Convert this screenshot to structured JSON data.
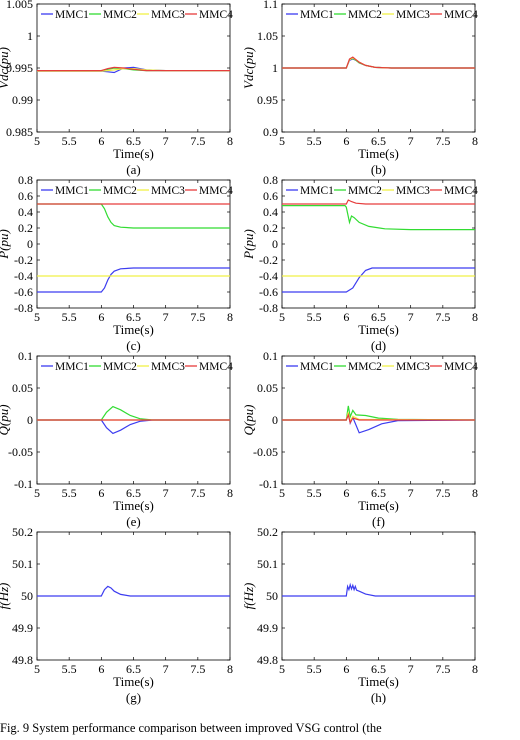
{
  "figure": {
    "caption": "Fig. 9   System performance comparison between improved VSG control (the"
  },
  "colors": {
    "MMC1": "#3c3cf0",
    "MMC2": "#32dc32",
    "MMC3": "#f0f046",
    "MMC4": "#e63c3c"
  },
  "chart_data": [
    {
      "id": "a",
      "type": "line",
      "panel_label": "(a)",
      "xlabel": "Time(s)",
      "ylabel": "Vdc(pu)",
      "xlim": [
        5,
        8
      ],
      "ylim": [
        0.985,
        1.005
      ],
      "xticks": [
        "5",
        "5.5",
        "6",
        "6.5",
        "7",
        "7.5",
        "8"
      ],
      "yticks": [
        "0.985",
        "0.99",
        "0.995",
        "1",
        "1.005"
      ],
      "legend": [
        "MMC1",
        "MMC2",
        "MMC3",
        "MMC4"
      ],
      "legend_position": "top",
      "series": [
        {
          "name": "MMC1",
          "x": [
            5,
            6.0,
            6.1,
            6.2,
            6.35,
            6.5,
            6.7,
            7,
            8
          ],
          "y": [
            0.9945,
            0.9945,
            0.9944,
            0.9943,
            0.995,
            0.9951,
            0.9947,
            0.9946,
            0.9946
          ]
        },
        {
          "name": "MMC2",
          "x": [
            5,
            6.0,
            6.1,
            6.2,
            6.35,
            6.5,
            6.7,
            7,
            8
          ],
          "y": [
            0.9946,
            0.9946,
            0.9948,
            0.995,
            0.9949,
            0.9947,
            0.9946,
            0.9946,
            0.9946
          ]
        },
        {
          "name": "MMC3",
          "x": [
            5,
            6.0,
            6.1,
            6.2,
            6.35,
            6.5,
            6.7,
            7,
            8
          ],
          "y": [
            0.9945,
            0.9945,
            0.9946,
            0.9947,
            0.9949,
            0.9949,
            0.9947,
            0.9946,
            0.9946
          ]
        },
        {
          "name": "MMC4",
          "x": [
            5,
            6.0,
            6.1,
            6.2,
            6.35,
            6.5,
            6.7,
            7,
            8
          ],
          "y": [
            0.9946,
            0.9946,
            0.9949,
            0.9951,
            0.995,
            0.9948,
            0.9946,
            0.9946,
            0.9946
          ]
        }
      ]
    },
    {
      "id": "b",
      "type": "line",
      "panel_label": "(b)",
      "xlabel": "Time(s)",
      "ylabel": "Vdc(pu)",
      "xlim": [
        5,
        8
      ],
      "ylim": [
        0.9,
        1.1
      ],
      "xticks": [
        "5",
        "5.5",
        "6",
        "6.5",
        "7",
        "7.5",
        "8"
      ],
      "yticks": [
        "0.9",
        "0.95",
        "1",
        "1.05",
        "1.1"
      ],
      "legend": [
        "MMC1",
        "MMC2",
        "MMC3",
        "MMC4"
      ],
      "legend_position": "top",
      "series": [
        {
          "name": "MMC1",
          "x": [
            5,
            6.0,
            6.05,
            6.1,
            6.15,
            6.2,
            6.3,
            6.45,
            6.7,
            8
          ],
          "y": [
            1.0,
            1.0,
            1.012,
            1.014,
            1.012,
            1.008,
            1.004,
            1.001,
            1.0,
            1.0
          ]
        },
        {
          "name": "MMC2",
          "x": [
            5,
            6.0,
            6.05,
            6.1,
            6.15,
            6.2,
            6.3,
            6.45,
            6.7,
            8
          ],
          "y": [
            1.0,
            1.0,
            1.013,
            1.015,
            1.012,
            1.008,
            1.004,
            1.001,
            1.0,
            1.0
          ]
        },
        {
          "name": "MMC3",
          "x": [
            5,
            6.0,
            6.05,
            6.1,
            6.15,
            6.2,
            6.3,
            6.45,
            6.7,
            8
          ],
          "y": [
            1.0,
            1.0,
            1.013,
            1.016,
            1.013,
            1.009,
            1.004,
            1.001,
            1.0,
            1.0
          ]
        },
        {
          "name": "MMC4",
          "x": [
            5,
            6.0,
            6.05,
            6.1,
            6.15,
            6.2,
            6.3,
            6.45,
            6.7,
            8
          ],
          "y": [
            1.0,
            1.0,
            1.014,
            1.017,
            1.013,
            1.009,
            1.004,
            1.001,
            1.0,
            1.0
          ]
        }
      ]
    },
    {
      "id": "c",
      "type": "line",
      "panel_label": "(c)",
      "xlabel": "Time(s)",
      "ylabel": "P(pu)",
      "xlim": [
        5,
        8
      ],
      "ylim": [
        -0.8,
        0.8
      ],
      "xticks": [
        "5",
        "5.5",
        "6",
        "6.5",
        "7",
        "7.5",
        "8"
      ],
      "yticks": [
        "-0.8",
        "-0.6",
        "-0.4",
        "-0.2",
        "0",
        "0.2",
        "0.4",
        "0.6",
        "0.8"
      ],
      "legend": [
        "MMC1",
        "MMC2",
        "MMC3",
        "MMC4"
      ],
      "legend_position": "top",
      "series": [
        {
          "name": "MMC1",
          "x": [
            5,
            6.0,
            6.05,
            6.1,
            6.15,
            6.2,
            6.3,
            6.5,
            8
          ],
          "y": [
            -0.6,
            -0.6,
            -0.55,
            -0.45,
            -0.38,
            -0.34,
            -0.31,
            -0.3,
            -0.3
          ]
        },
        {
          "name": "MMC2",
          "x": [
            5,
            6.0,
            6.05,
            6.1,
            6.15,
            6.2,
            6.3,
            6.5,
            8
          ],
          "y": [
            0.5,
            0.5,
            0.44,
            0.34,
            0.27,
            0.23,
            0.21,
            0.2,
            0.2
          ]
        },
        {
          "name": "MMC3",
          "x": [
            5,
            8
          ],
          "y": [
            -0.4,
            -0.4
          ]
        },
        {
          "name": "MMC4",
          "x": [
            5,
            8
          ],
          "y": [
            0.5,
            0.5
          ]
        }
      ]
    },
    {
      "id": "d",
      "type": "line",
      "panel_label": "(d)",
      "xlabel": "Time(s)",
      "ylabel": "P(pu)",
      "xlim": [
        5,
        8
      ],
      "ylim": [
        -0.8,
        0.8
      ],
      "xticks": [
        "5",
        "5.5",
        "6",
        "6.5",
        "7",
        "7.5",
        "8"
      ],
      "yticks": [
        "-0.8",
        "-0.6",
        "-0.4",
        "-0.2",
        "0",
        "0.2",
        "0.4",
        "0.6",
        "0.8"
      ],
      "legend": [
        "MMC1",
        "MMC2",
        "MMC3",
        "MMC4"
      ],
      "legend_position": "top",
      "series": [
        {
          "name": "MMC1",
          "x": [
            5,
            6.0,
            6.1,
            6.2,
            6.3,
            6.4,
            6.6,
            8
          ],
          "y": [
            -0.6,
            -0.6,
            -0.55,
            -0.42,
            -0.33,
            -0.3,
            -0.3,
            -0.3
          ]
        },
        {
          "name": "MMC2",
          "x": [
            5,
            5.98,
            6.0,
            6.05,
            6.08,
            6.12,
            6.2,
            6.35,
            6.6,
            7.0,
            8
          ],
          "y": [
            0.48,
            0.48,
            0.46,
            0.27,
            0.35,
            0.33,
            0.27,
            0.22,
            0.19,
            0.18,
            0.18
          ]
        },
        {
          "name": "MMC3",
          "x": [
            5,
            8
          ],
          "y": [
            -0.4,
            -0.4
          ]
        },
        {
          "name": "MMC4",
          "x": [
            5,
            6.0,
            6.03,
            6.08,
            6.15,
            6.3,
            8
          ],
          "y": [
            0.5,
            0.5,
            0.55,
            0.53,
            0.51,
            0.5,
            0.5
          ]
        }
      ]
    },
    {
      "id": "e",
      "type": "line",
      "panel_label": "(e)",
      "xlabel": "Time(s)",
      "ylabel": "Q(pu)",
      "xlim": [
        5,
        8
      ],
      "ylim": [
        -0.1,
        0.1
      ],
      "xticks": [
        "5",
        "5.5",
        "6",
        "6.5",
        "7",
        "7.5",
        "8"
      ],
      "yticks": [
        "-0.1",
        "-0.05",
        "0",
        "0.05",
        "0.1"
      ],
      "legend": [
        "MMC1",
        "MMC2",
        "MMC3",
        "MMC4"
      ],
      "legend_position": "top",
      "series": [
        {
          "name": "MMC1",
          "x": [
            5,
            6.0,
            6.08,
            6.18,
            6.3,
            6.45,
            6.6,
            6.8,
            8
          ],
          "y": [
            0,
            0,
            -0.012,
            -0.021,
            -0.016,
            -0.007,
            -0.002,
            0,
            0
          ]
        },
        {
          "name": "MMC2",
          "x": [
            5,
            6.0,
            6.08,
            6.18,
            6.3,
            6.45,
            6.6,
            6.8,
            8
          ],
          "y": [
            0,
            0,
            0.012,
            0.021,
            0.016,
            0.007,
            0.002,
            0,
            0
          ]
        },
        {
          "name": "MMC3",
          "x": [
            5,
            8
          ],
          "y": [
            0,
            0
          ]
        },
        {
          "name": "MMC4",
          "x": [
            5,
            8
          ],
          "y": [
            0,
            0
          ]
        }
      ]
    },
    {
      "id": "f",
      "type": "line",
      "panel_label": "(f)",
      "xlabel": "Time(s)",
      "ylabel": "Q(pu)",
      "xlim": [
        5,
        8
      ],
      "ylim": [
        -0.1,
        0.1
      ],
      "xticks": [
        "5",
        "5.5",
        "6",
        "6.5",
        "7",
        "7.5",
        "8"
      ],
      "yticks": [
        "-0.1",
        "-0.05",
        "0",
        "0.05",
        "0.1"
      ],
      "legend": [
        "MMC1",
        "MMC2",
        "MMC3",
        "MMC4"
      ],
      "legend_position": "top",
      "series": [
        {
          "name": "MMC1",
          "x": [
            5,
            6.0,
            6.03,
            6.06,
            6.1,
            6.2,
            6.35,
            6.55,
            6.8,
            8
          ],
          "y": [
            0,
            0,
            0.01,
            -0.005,
            0.004,
            -0.02,
            -0.015,
            -0.006,
            -0.001,
            0
          ]
        },
        {
          "name": "MMC2",
          "x": [
            5,
            6.0,
            6.03,
            6.06,
            6.1,
            6.15,
            6.3,
            6.5,
            6.8,
            8
          ],
          "y": [
            0,
            0,
            0.022,
            0.005,
            0.015,
            0.008,
            0.007,
            0.003,
            0.001,
            0
          ]
        },
        {
          "name": "MMC3",
          "x": [
            5,
            6.0,
            6.03,
            6.06,
            6.1,
            6.2,
            8
          ],
          "y": [
            0,
            0,
            0.012,
            -0.003,
            0.006,
            0.001,
            0
          ]
        },
        {
          "name": "MMC4",
          "x": [
            5,
            6.0,
            6.03,
            6.06,
            6.1,
            6.2,
            8
          ],
          "y": [
            0,
            0,
            0.008,
            -0.004,
            0.003,
            0,
            0
          ]
        }
      ]
    },
    {
      "id": "g",
      "type": "line",
      "panel_label": "(g)",
      "xlabel": "Time(s)",
      "ylabel": "f(Hz)",
      "xlim": [
        5,
        8
      ],
      "ylim": [
        49.8,
        50.2
      ],
      "xticks": [
        "5",
        "5.5",
        "6",
        "6.5",
        "7",
        "7.5",
        "8"
      ],
      "yticks": [
        "49.8",
        "49.9",
        "50",
        "50.1",
        "50.2"
      ],
      "series": [
        {
          "name": "",
          "color": "#3c3cf0",
          "x": [
            5,
            6.0,
            6.05,
            6.1,
            6.15,
            6.2,
            6.3,
            6.45,
            8
          ],
          "y": [
            50,
            50,
            50.02,
            50.03,
            50.025,
            50.015,
            50.005,
            50,
            50
          ]
        }
      ]
    },
    {
      "id": "h",
      "type": "line",
      "panel_label": "(h)",
      "xlabel": "Time(s)",
      "ylabel": "f(Hz)",
      "xlim": [
        5,
        8
      ],
      "ylim": [
        49.8,
        50.2
      ],
      "xticks": [
        "5",
        "5.5",
        "6",
        "6.5",
        "7",
        "7.5",
        "8"
      ],
      "yticks": [
        "49.8",
        "49.9",
        "50",
        "50.1",
        "50.2"
      ],
      "series": [
        {
          "name": "",
          "color": "#3c3cf0",
          "x": [
            5,
            6.0,
            6.02,
            6.04,
            6.06,
            6.08,
            6.1,
            6.12,
            6.14,
            6.16,
            6.2,
            6.3,
            6.45,
            8
          ],
          "y": [
            50,
            50,
            50.03,
            50.02,
            50.035,
            50.022,
            50.033,
            50.02,
            50.03,
            50.018,
            50.015,
            50.006,
            50,
            50
          ]
        }
      ]
    }
  ]
}
